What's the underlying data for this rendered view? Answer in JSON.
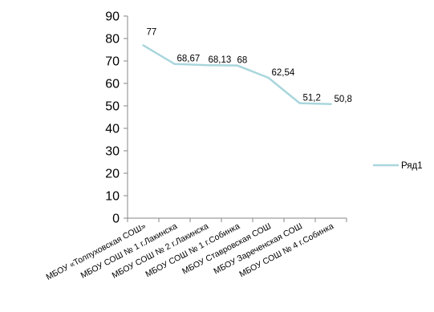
{
  "chart_data": {
    "type": "line",
    "title": "",
    "xlabel": "",
    "ylabel": "",
    "ylim": [
      0,
      90
    ],
    "ytick_step": 10,
    "grid": false,
    "legend_position": "right",
    "categories": [
      "МБОУ «Толпуховская СОШ»",
      "МБОУ СОШ № 1 г.Лакинска",
      "МБОУ СОШ № 2 г.Лакинска",
      "МБОУ СОШ  № 1 г.Собинка",
      "МБОУ Ставровская СОШ",
      "МБОУ  Зареченская СОШ",
      "МБОУ СОШ № 4 г.Собинка"
    ],
    "series": [
      {
        "name": "Ряд1",
        "color": "#a9d6dc",
        "values": [
          77,
          68.67,
          68.13,
          68,
          62.54,
          51.2,
          50.8
        ],
        "labels": [
          "77",
          "68,67",
          "68,13",
          "68",
          "62,54",
          "51,2",
          "50,8"
        ]
      }
    ]
  }
}
